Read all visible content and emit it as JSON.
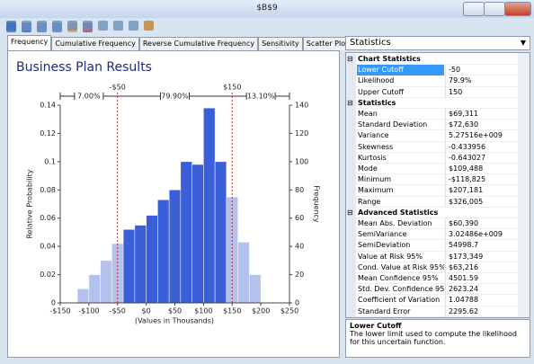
{
  "window": {
    "title": "$B$9"
  },
  "tabs": [
    "Frequency",
    "Cumulative Frequency",
    "Reverse Cumulative Frequency",
    "Sensitivity",
    "Scatter Plots"
  ],
  "chart_data": {
    "type": "histogram",
    "title": "Business Plan Results",
    "xlabel": "(Values in Thousands)",
    "ylabel": "Relative Probability",
    "y2label": "Frequency",
    "bins": [
      -120,
      -100,
      -80,
      -60,
      -40,
      -20,
      0,
      20,
      40,
      60,
      80,
      100,
      120,
      140,
      160,
      180,
      200
    ],
    "values": [
      0.01,
      0.02,
      0.03,
      0.042,
      0.052,
      0.055,
      0.062,
      0.073,
      0.08,
      0.1,
      0.098,
      0.138,
      0.1,
      0.075,
      0.043,
      0.02
    ],
    "color": "#3a5fd9",
    "outside_color": "#b4c1ef",
    "xlim": [
      -150,
      250
    ],
    "xticks": [
      {
        "value": -150,
        "label": "-$150"
      },
      {
        "value": -100,
        "label": "-$100"
      },
      {
        "value": -50,
        "label": "-$50"
      },
      {
        "value": 0,
        "label": "$0"
      },
      {
        "value": 50,
        "label": "$50"
      },
      {
        "value": 100,
        "label": "$100"
      },
      {
        "value": 150,
        "label": "$150"
      },
      {
        "value": 200,
        "label": "$200"
      },
      {
        "value": 250,
        "label": "$250"
      }
    ],
    "ylim": [
      0,
      0.14
    ],
    "yticks": [
      0,
      0.02,
      0.04,
      0.06,
      0.08,
      0.1,
      0.12,
      0.14
    ],
    "y2lim": [
      0,
      140
    ],
    "y2ticks": [
      0,
      20,
      40,
      60,
      80,
      100,
      120,
      140
    ],
    "cutoffs": [
      {
        "value": -50,
        "label": "-$50"
      },
      {
        "value": 150,
        "label": "$150"
      }
    ],
    "segment_labels": [
      "7.00%",
      "79.90%",
      "13.10%"
    ]
  },
  "panel": {
    "title": "Statistics",
    "sections": [
      {
        "title": "Chart Statistics",
        "rows": [
          [
            "Lower Cutoff",
            "-50"
          ],
          [
            "Likelihood",
            "79.9%"
          ],
          [
            "Upper Cutoff",
            "150"
          ]
        ]
      },
      {
        "title": "Statistics",
        "rows": [
          [
            "Mean",
            "$69,311"
          ],
          [
            "Standard Deviation",
            "$72,630"
          ],
          [
            "Variance",
            "5.27516e+009"
          ],
          [
            "Skewness",
            "-0.433956"
          ],
          [
            "Kurtosis",
            "-0.643027"
          ],
          [
            "Mode",
            "$109,488"
          ],
          [
            "Minimum",
            "-$118,825"
          ],
          [
            "Maximum",
            "$207,181"
          ],
          [
            "Range",
            "$326,005"
          ]
        ]
      },
      {
        "title": "Advanced Statistics",
        "rows": [
          [
            "Mean Abs. Deviation",
            "$60,390"
          ],
          [
            "SemiVariance",
            "3.02486e+009"
          ],
          [
            "SemiDeviation",
            "54998.7"
          ],
          [
            "Value at Risk 95%",
            "$173,349"
          ],
          [
            "Cond. Value at Risk 95%",
            "$63,216"
          ],
          [
            "Mean Confidence 95%",
            "4501.59"
          ],
          [
            "Std. Dev. Confidence 95%",
            "2623.24"
          ],
          [
            "Coefficient of Variation",
            "1.04788"
          ],
          [
            "Standard Error",
            "2295.62"
          ]
        ]
      }
    ],
    "description": {
      "title": "Lower Cutoff",
      "text": "The lower limit used to compute the likelihood for this uncertain function."
    }
  }
}
